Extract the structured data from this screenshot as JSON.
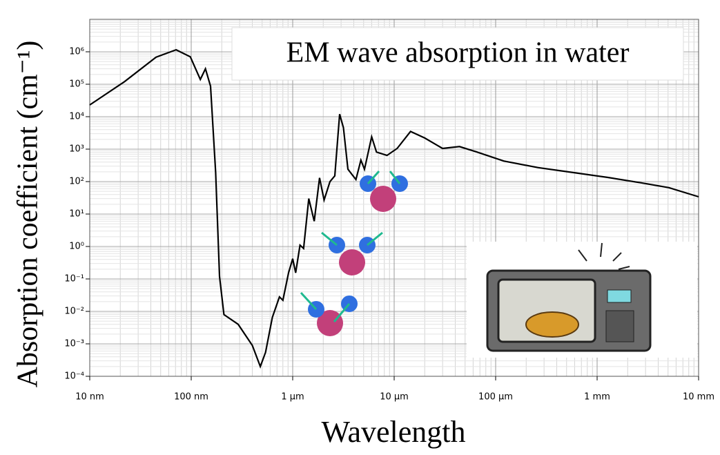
{
  "chart_data": {
    "type": "line",
    "title": "EM wave absorption in water",
    "x_label": "Wavelength",
    "y_label": "Absorption coefficient (cm⁻¹)",
    "log_x": true,
    "log_y": true,
    "grid": true,
    "minor_grid": true,
    "xlim": [
      1e-08,
      0.01
    ],
    "ylim": [
      0.0001,
      10000000.0
    ],
    "xticks": [
      {
        "value": 1e-08,
        "label": "10 nm"
      },
      {
        "value": 1e-07,
        "label": "100 nm"
      },
      {
        "value": 1e-06,
        "label": "1 μm"
      },
      {
        "value": 1e-05,
        "label": "10 μm"
      },
      {
        "value": 0.0001,
        "label": "100 μm"
      },
      {
        "value": 0.001,
        "label": "1 mm"
      },
      {
        "value": 0.01,
        "label": "10 mm"
      }
    ],
    "yticks": [
      {
        "value": 0.0001,
        "label": "10⁻⁴"
      },
      {
        "value": 0.001,
        "label": "10⁻³"
      },
      {
        "value": 0.01,
        "label": "10⁻²"
      },
      {
        "value": 0.1,
        "label": "10⁻¹"
      },
      {
        "value": 1,
        "label": "10⁰"
      },
      {
        "value": 10,
        "label": "10¹"
      },
      {
        "value": 100,
        "label": "10²"
      },
      {
        "value": 1000,
        "label": "10³"
      },
      {
        "value": 10000,
        "label": "10⁴"
      },
      {
        "value": 100000,
        "label": "10⁵"
      },
      {
        "value": 1000000,
        "label": "10⁶"
      }
    ],
    "series": [
      {
        "color": "#000000",
        "x": [
          1e-08,
          2.2e-08,
          4.5e-08,
          7.1e-08,
          9.8e-08,
          1.23e-07,
          1.38e-07,
          1.55e-07,
          1.74e-07,
          1.9e-07,
          2.1e-07,
          2.9e-07,
          4e-07,
          4.8e-07,
          5.4e-07,
          6.3e-07,
          7.4e-07,
          8e-07,
          9.1e-07,
          1e-06,
          1.07e-06,
          1.18e-06,
          1.28e-06,
          1.44e-06,
          1.63e-06,
          1.84e-06,
          2.04e-06,
          2.33e-06,
          2.6e-06,
          2.9e-06,
          3.16e-06,
          3.5e-06,
          4.2e-06,
          4.7e-06,
          5.1e-06,
          6e-06,
          6.7e-06,
          8.5e-06,
          1.07e-05,
          1.45e-05,
          2e-05,
          3e-05,
          4.4e-05,
          6.5e-05,
          0.00012,
          0.00026,
          0.00058,
          0.00126,
          0.00275,
          0.0051,
          0.01
        ],
        "values": [
          23000,
          120000,
          680000,
          1150000,
          700000,
          140000,
          300000,
          87000,
          190,
          0.12,
          0.008,
          0.004,
          0.0009,
          0.0002,
          0.00055,
          0.0065,
          0.028,
          0.022,
          0.155,
          0.42,
          0.155,
          1.1,
          0.87,
          30,
          6,
          130,
          27,
          100,
          150,
          12000,
          4600,
          240,
          115,
          460,
          240,
          2400,
          810,
          640,
          1050,
          3500,
          2200,
          1050,
          1200,
          820,
          430,
          270,
          190,
          135,
          91,
          65,
          34
        ]
      }
    ]
  }
}
